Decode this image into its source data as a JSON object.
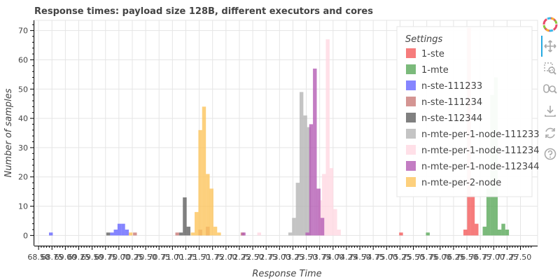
{
  "chart_data": {
    "type": "bar",
    "title": "Response times: payload size 128B, different executors and cores",
    "xlabel": "Response Time",
    "ylabel": "Number of samples",
    "xlim": [
      68.42,
      77.82
    ],
    "ylim": [
      -3.5,
      73.5
    ],
    "bin_width": 0.071,
    "x_ticks": [
      68.5,
      68.75,
      69.0,
      69.25,
      69.5,
      69.75,
      70.0,
      70.25,
      70.5,
      70.75,
      71.0,
      71.25,
      71.5,
      71.75,
      72.0,
      72.25,
      72.5,
      72.75,
      73.0,
      73.25,
      73.5,
      73.75,
      74.0,
      74.25,
      74.5,
      74.75,
      75.0,
      75.25,
      75.5,
      75.75,
      76.0,
      76.25,
      76.5,
      76.75,
      77.0,
      77.25,
      77.5
    ],
    "x_tick_labels": [
      "68.50",
      "68.75",
      "69.00",
      "69.25",
      "69.50",
      "69.75",
      "70.00",
      "70.25",
      "70.50",
      "70.75",
      "71.00",
      "71.25",
      "71.50",
      "71.75",
      "72.00",
      "72.25",
      "72.50",
      "72.75",
      "73.00",
      "73.25",
      "73.50",
      "73.75",
      "74.00",
      "74.25",
      "74.50",
      "74.75",
      "75.00",
      "75.25",
      "75.50",
      "75.75",
      "76.00",
      "76.25",
      "76.50",
      "76.75",
      "77.00",
      "77.25",
      "77.50"
    ],
    "y_ticks": [
      0,
      10,
      20,
      30,
      40,
      50,
      60,
      70
    ],
    "y_tick_labels": [
      "0",
      "10",
      "20",
      "30",
      "40",
      "50",
      "60",
      "70"
    ],
    "legend": {
      "title": "Settings",
      "placement": "top-right"
    },
    "grid": true,
    "series": [
      {
        "name": "1-ste",
        "color": "#f45b5b",
        "bins": [
          [
            75.27,
            1
          ],
          [
            76.47,
            2
          ],
          [
            76.54,
            71
          ],
          [
            76.61,
            14
          ],
          [
            76.68,
            4
          ]
        ]
      },
      {
        "name": "1-mte",
        "color": "#5aa95a",
        "bins": [
          [
            75.77,
            1
          ],
          [
            76.83,
            3
          ],
          [
            76.9,
            16
          ],
          [
            76.97,
            48
          ],
          [
            77.04,
            54
          ],
          [
            77.11,
            2
          ],
          [
            77.18,
            4
          ],
          [
            77.25,
            2
          ]
        ]
      },
      {
        "name": "n-ste-111233",
        "color": "#6666ff",
        "bins": [
          [
            68.73,
            1
          ],
          [
            69.87,
            1
          ],
          [
            69.94,
            2
          ],
          [
            70.01,
            4
          ],
          [
            70.08,
            4
          ],
          [
            70.15,
            2
          ]
        ]
      },
      {
        "name": "n-ste-111234",
        "color": "#c97b78",
        "bins": [
          [
            70.3,
            1
          ],
          [
            71.09,
            1
          ],
          [
            71.52,
            2
          ],
          [
            71.66,
            3
          ],
          [
            72.31,
            1
          ]
        ]
      },
      {
        "name": "n-ste-112344",
        "color": "#606060",
        "bins": [
          [
            69.8,
            1
          ],
          [
            71.16,
            1
          ],
          [
            71.23,
            13
          ],
          [
            71.3,
            3
          ]
        ]
      },
      {
        "name": "n-mte-per-1-node-111233",
        "color": "#b5b5b5",
        "bins": [
          [
            73.2,
            1
          ],
          [
            73.27,
            6
          ],
          [
            73.34,
            18
          ],
          [
            73.41,
            49
          ],
          [
            73.48,
            41
          ],
          [
            73.55,
            37
          ]
        ]
      },
      {
        "name": "n-mte-per-1-node-111234",
        "color": "#ffd8e2",
        "bins": [
          [
            72.62,
            1
          ],
          [
            73.76,
            12
          ],
          [
            73.83,
            21
          ],
          [
            73.9,
            67
          ],
          [
            73.97,
            23
          ],
          [
            74.04,
            9
          ],
          [
            74.11,
            2
          ]
        ]
      },
      {
        "name": "n-mte-per-1-node-112344",
        "color": "#b45cb4",
        "bins": [
          [
            72.33,
            1
          ],
          [
            73.52,
            1
          ],
          [
            73.59,
            38
          ],
          [
            73.66,
            57
          ],
          [
            73.73,
            16
          ],
          [
            73.8,
            6
          ]
        ]
      },
      {
        "name": "n-mte-per-2-node",
        "color": "#fcc45c",
        "bins": [
          [
            70.22,
            1
          ],
          [
            71.38,
            1
          ],
          [
            71.45,
            8
          ],
          [
            71.52,
            36
          ],
          [
            71.59,
            44
          ],
          [
            71.66,
            21
          ],
          [
            71.73,
            16
          ],
          [
            71.8,
            3
          ],
          [
            71.87,
            1
          ]
        ]
      }
    ]
  },
  "toolbar": {
    "items": [
      {
        "name": "bokeh-logo-icon"
      },
      {
        "name": "pan-icon"
      },
      {
        "name": "box-zoom-icon"
      },
      {
        "name": "wheel-zoom-icon"
      },
      {
        "name": "save-icon"
      },
      {
        "name": "reset-icon"
      },
      {
        "name": "help-icon"
      }
    ]
  }
}
